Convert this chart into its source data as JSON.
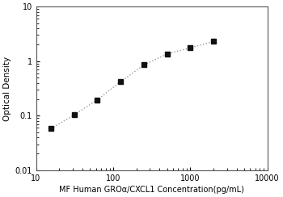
{
  "x_data": [
    15.625,
    31.25,
    62.5,
    125,
    250,
    500,
    1000,
    2000
  ],
  "y_data": [
    0.058,
    0.103,
    0.196,
    0.42,
    0.85,
    1.35,
    1.75,
    2.3
  ],
  "xlim": [
    10,
    10000
  ],
  "ylim": [
    0.01,
    10
  ],
  "xlabel": "MF Human GROα/CXCL1 Concentration(pg/mL)",
  "ylabel": "Optical Density",
  "marker": "s",
  "marker_color": "#111111",
  "line_color": "#999999",
  "line_style": ":",
  "marker_size": 4,
  "line_width": 1.0,
  "xtick_positions": [
    10,
    100,
    1000,
    10000
  ],
  "ytick_positions": [
    0.01,
    0.1,
    1,
    10
  ],
  "xlabel_fontsize": 7.0,
  "ylabel_fontsize": 7.5,
  "tick_fontsize": 7.0,
  "background_color": "#ffffff"
}
